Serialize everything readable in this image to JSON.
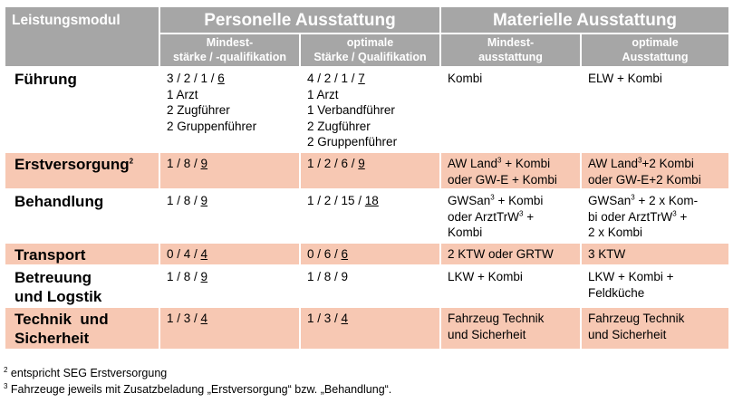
{
  "header": {
    "module": "Leistungsmodul",
    "personnel": "Personelle Ausstattung",
    "material": "Materielle Ausstattung",
    "sub1_line1": "Mindest-",
    "sub1_line2": "stärke / -qualifikation",
    "sub2_line1": "optimale",
    "sub2_line2": "Stärke / Qualifikation",
    "sub3_line1": "Mindest-",
    "sub3_line2": "ausstattung",
    "sub4_line1": "optimale",
    "sub4_line2": "Ausstattung"
  },
  "rows": {
    "fuehrung": {
      "label": "Führung",
      "min_prefix": "3 / 2 / 1 / ",
      "min_total": "6",
      "min_lines": [
        "1 Arzt",
        "2 Zugführer",
        "2 Gruppenführer"
      ],
      "opt_prefix": "4 / 2 / 1 / ",
      "opt_total": "7",
      "opt_lines": [
        "1 Arzt",
        "1 Verbandführer",
        "2 Zugführer",
        "2 Gruppenführer"
      ],
      "mat_min": "Kombi",
      "mat_opt": "ELW + Kombi"
    },
    "erstversorgung": {
      "label": "Erstversorgung",
      "label_sup": "2",
      "min_prefix": "1 / 8 / ",
      "min_total": "9",
      "opt_prefix": "1 / 2 / 6 / ",
      "opt_total": "9",
      "mat_min_a": "AW Land",
      "mat_min_sup": "3",
      "mat_min_b": " + Kombi",
      "mat_min_line2": "oder GW-E + Kombi",
      "mat_opt_a": "AW Land",
      "mat_opt_sup": "3",
      "mat_opt_b": "+2 Kombi",
      "mat_opt_line2": "oder GW-E+2 Kombi"
    },
    "behandlung": {
      "label": "Behandlung",
      "min_prefix": "1 / 8 / ",
      "min_total": "9",
      "opt_prefix": "1 / 2 / 15 / ",
      "opt_total": "18",
      "mat_min_a": "GWSan",
      "mat_min_sup": "3",
      "mat_min_b": " + Kombi",
      "mat_min_l2a": "oder ArztTrW",
      "mat_min_l2sup": "3",
      "mat_min_l2b": " +",
      "mat_min_line3": "Kombi",
      "mat_opt_a": "GWSan",
      "mat_opt_sup": "3",
      "mat_opt_b": " + 2 x Kom-",
      "mat_opt_l2a": "bi oder ArztTrW",
      "mat_opt_l2sup": "3",
      "mat_opt_l2b": " +",
      "mat_opt_line3": "2 x Kombi"
    },
    "transport": {
      "label": "Transport",
      "min_prefix": "0 / 4 / ",
      "min_total": "4",
      "opt_prefix": "0 / 6 / ",
      "opt_total": "6",
      "mat_min": "2 KTW oder GRTW",
      "mat_opt": "3 KTW"
    },
    "betreuung": {
      "label_line1": "Betreuung",
      "label_line2": "und Logstik",
      "min_prefix": "1 / 8 / ",
      "min_total": "9",
      "opt_prefix": "1 / 8 / ",
      "opt_total": "9",
      "mat_min": "LKW + Kombi",
      "mat_opt_line1": "LKW + Kombi +",
      "mat_opt_line2": "Feldküche"
    },
    "technik": {
      "label_line1": "Technik  und",
      "label_line2": "Sicherheit",
      "min_prefix": "1 / 3 / ",
      "min_total": "4",
      "opt_prefix": "1 / 3 / ",
      "opt_total": "4",
      "mat_min_line1": "Fahrzeug Technik",
      "mat_min_line2": "und Sicherheit",
      "mat_opt_line1": "Fahrzeug Technik",
      "mat_opt_line2": "und Sicherheit"
    }
  },
  "footnotes": {
    "f2_mark": "2",
    "f2_text": " entspricht SEG Erstversorgung",
    "f3_mark": "3",
    "f3_text": " Fahrzeuge jeweils mit Zusatzbeladung „Erstversorgung“ bzw. „Behandlung“."
  },
  "colors": {
    "header_bg": "#a6a6a6",
    "highlight_row": "#f7c8b3"
  }
}
